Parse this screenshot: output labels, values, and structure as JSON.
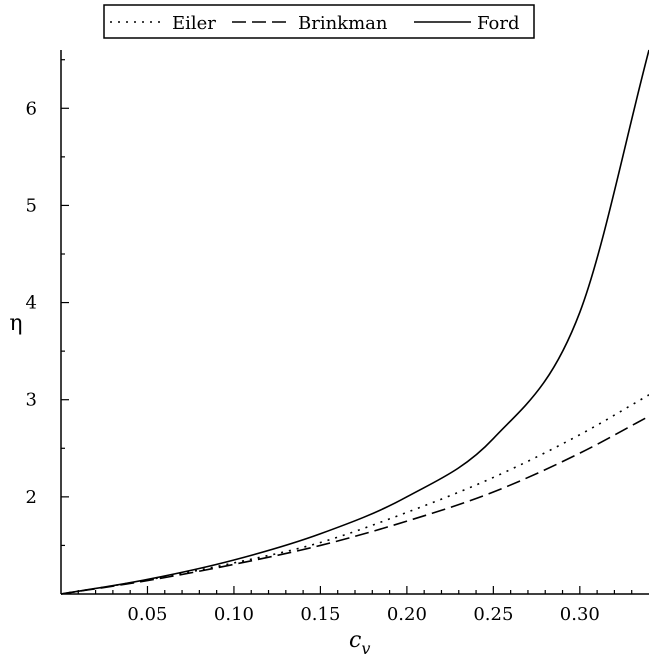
{
  "chart_data": {
    "type": "line",
    "xlabel_main": "c",
    "xlabel_sub": "v",
    "ylabel": "η",
    "xlim": [
      0,
      0.34
    ],
    "ylim": [
      1,
      6.6
    ],
    "x_ticks": [
      "0.05",
      "0.10",
      "0.15",
      "0.20",
      "0.25",
      "0.30"
    ],
    "y_ticks": [
      "2",
      "3",
      "4",
      "5",
      "6"
    ],
    "legend_position": "top",
    "series": [
      {
        "name": "Eiler",
        "style": "dotted",
        "x": [
          0,
          0.05,
          0.1,
          0.15,
          0.2,
          0.25,
          0.3,
          0.34
        ],
        "y": [
          1.0,
          1.145,
          1.32,
          1.53,
          1.84,
          2.2,
          2.64,
          3.05
        ]
      },
      {
        "name": "Brinkman",
        "style": "dashed",
        "x": [
          0,
          0.05,
          0.1,
          0.15,
          0.2,
          0.25,
          0.3,
          0.34
        ],
        "y": [
          1.0,
          1.138,
          1.305,
          1.5,
          1.75,
          2.05,
          2.45,
          2.83
        ]
      },
      {
        "name": "Ford",
        "style": "solid",
        "x": [
          0,
          0.05,
          0.1,
          0.15,
          0.2,
          0.25,
          0.3,
          0.34
        ],
        "y": [
          1.0,
          1.15,
          1.35,
          1.62,
          2.0,
          2.6,
          3.9,
          6.6
        ]
      }
    ]
  }
}
